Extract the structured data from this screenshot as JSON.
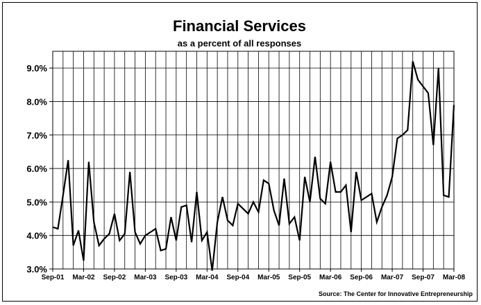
{
  "chart_data": {
    "type": "line",
    "title": "Financial Services",
    "subtitle": "as a percent of all responses",
    "source": "Source: The Center for Innovative Entrepreneurship",
    "ylim": [
      3.0,
      9.5
    ],
    "yticks": [
      "3.0%",
      "4.0%",
      "5.0%",
      "6.0%",
      "7.0%",
      "8.0%",
      "9.0%"
    ],
    "ytick_values": [
      3.0,
      4.0,
      5.0,
      6.0,
      7.0,
      8.0,
      9.0
    ],
    "xtick_labels": [
      "Sep-01",
      "Mar-02",
      "Sep-02",
      "Mar-03",
      "Sep-03",
      "Mar-04",
      "Sep-04",
      "Mar-05",
      "Sep-05",
      "Mar-06",
      "Sep-06",
      "Mar-07",
      "Sep-07",
      "Mar-08"
    ],
    "xtick_index": [
      0,
      6,
      12,
      18,
      24,
      30,
      36,
      42,
      48,
      54,
      60,
      66,
      72,
      78
    ],
    "grid": true,
    "line_color": "#000000",
    "series": [
      {
        "values": [
          4.25,
          4.2,
          5.2,
          6.25,
          3.7,
          4.15,
          3.25,
          6.2,
          4.4,
          3.7,
          3.9,
          4.05,
          4.65,
          3.85,
          4.05,
          5.9,
          4.1,
          3.75,
          4.0,
          4.1,
          4.2,
          3.55,
          3.6,
          4.55,
          3.85,
          4.85,
          4.9,
          3.8,
          5.3,
          3.85,
          4.1,
          2.95,
          4.4,
          5.15,
          4.45,
          4.3,
          4.95,
          4.8,
          4.65,
          5.0,
          4.7,
          5.65,
          5.55,
          4.75,
          4.3,
          5.7,
          4.35,
          4.55,
          3.85,
          5.75,
          5.0,
          6.35,
          5.1,
          4.95,
          6.2,
          5.3,
          5.3,
          5.5,
          4.1,
          5.9,
          5.05,
          5.15,
          5.25,
          4.4,
          4.85,
          5.2,
          5.75,
          6.9,
          7.0,
          7.15,
          9.2,
          8.65,
          8.45,
          8.25,
          6.7,
          9.0,
          5.2,
          5.15,
          7.9
        ]
      }
    ]
  }
}
